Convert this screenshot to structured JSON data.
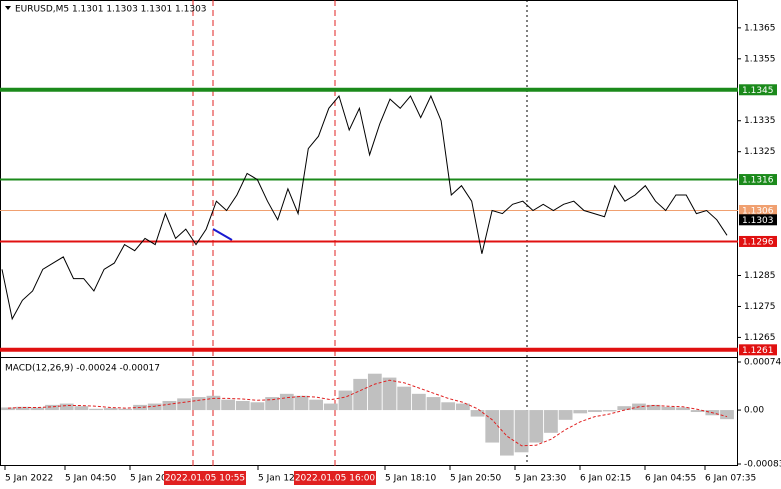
{
  "chart_data": [
    {
      "type": "price",
      "title": "EURUSD,M5 1.1301 1.1303 1.1301 1.1303",
      "ylim": [
        1.1259,
        1.1374
      ],
      "yticks": [
        1.1365,
        1.1355,
        1.1335,
        1.1325,
        1.1285,
        1.1275,
        1.1265
      ],
      "series": [
        {
          "color": "#000000",
          "values": [
            1.1287,
            1.1271,
            1.1277,
            1.128,
            1.1287,
            1.1289,
            1.1291,
            1.1284,
            1.1284,
            1.128,
            1.1287,
            1.1289,
            1.1295,
            1.1293,
            1.1297,
            1.1295,
            1.1305,
            1.1297,
            1.13,
            1.1295,
            1.13,
            1.1309,
            1.1306,
            1.1311,
            1.1318,
            1.1316,
            1.1309,
            1.1303,
            1.1313,
            1.1305,
            1.1326,
            1.133,
            1.1339,
            1.1343,
            1.1332,
            1.1339,
            1.1324,
            1.1334,
            1.1342,
            1.1339,
            1.1343,
            1.1336,
            1.1343,
            1.1335,
            1.1311,
            1.1314,
            1.1309,
            1.1292,
            1.1306,
            1.1305,
            1.1308,
            1.1309,
            1.1306,
            1.1308,
            1.1306,
            1.1308,
            1.1309,
            1.1306,
            1.1305,
            1.1304,
            1.1314,
            1.1309,
            1.1311,
            1.1314,
            1.1309,
            1.1306,
            1.1311,
            1.1311,
            1.1305,
            1.1306,
            1.1303,
            1.1298
          ]
        }
      ],
      "levels": [
        {
          "value": 1.1345,
          "color": "#1b8a1b",
          "width": 4
        },
        {
          "value": 1.1316,
          "color": "#1b8a1b",
          "width": 2
        },
        {
          "value": 1.1306,
          "color": "#f0a070",
          "width": 1
        },
        {
          "value": 1.1303,
          "color": "#000000",
          "width": 0
        },
        {
          "value": 1.1296,
          "color": "#e01010",
          "width": 2
        },
        {
          "value": 1.1261,
          "color": "#e01010",
          "width": 4
        }
      ],
      "xticks": [
        "5 Jan 2022",
        "5 Jan 04:50",
        "5 Jan 202",
        "5 Jan 12",
        "5 Jan 18:10",
        "5 Jan 20:50",
        "5 Jan 23:30",
        "6 Jan 02:15",
        "6 Jan 04:55",
        "6 Jan 07:35"
      ],
      "markers": [
        "2022.01.05 10:55",
        "2022.01.05 16:00"
      ]
    },
    {
      "type": "macd",
      "title": "MACD(12,26,9) -0.00024 -0.00017",
      "ylim": [
        -0.00083,
        0.00074
      ],
      "yticks": [
        0.00074,
        {
          "value": 0,
          "label": "0.00"
        },
        -0.00083
      ],
      "series": [
        {
          "color": "#c0c0c0",
          "values": [
            4e-05,
            5e-05,
            4e-05,
            8e-05,
            0.0001,
            6e-05,
            2e-05,
            3e-05,
            2e-05,
            8e-05,
            0.0001,
            0.00014,
            0.00018,
            0.0002,
            0.00022,
            0.00016,
            0.00014,
            0.00012,
            0.0002,
            0.00025,
            0.00022,
            0.00016,
            0.0001,
            0.0003,
            0.00048,
            0.00056,
            0.0005,
            0.00036,
            0.00025,
            0.0002,
            0.00012,
            0.0001,
            -0.0001,
            -0.0005,
            -0.0007,
            -0.00065,
            -0.0005,
            -0.00035,
            -0.00015,
            -5e-05,
            -3e-05,
            -2e-05,
            6e-05,
            0.0001,
            8e-05,
            5e-05,
            4e-05,
            -3e-05,
            -8e-05,
            -0.00014
          ]
        },
        {
          "color": "#e02020",
          "values": [
            3e-05,
            4e-05,
            4e-05,
            5e-05,
            7e-05,
            7e-05,
            6e-05,
            4e-05,
            3e-05,
            4e-05,
            6e-05,
            9e-05,
            0.00012,
            0.00015,
            0.00018,
            0.00018,
            0.00017,
            0.00015,
            0.00016,
            0.00019,
            0.00021,
            0.0002,
            0.00016,
            0.0002,
            0.0003,
            0.0004,
            0.00046,
            0.00042,
            0.00034,
            0.00026,
            0.00018,
            0.00012,
            2e-05,
            -0.00015,
            -0.0004,
            -0.00055,
            -0.00054,
            -0.00045,
            -0.0003,
            -0.00018,
            -0.0001,
            -6e-05,
            0,
            5e-05,
            7e-05,
            6e-05,
            5e-05,
            1e-05,
            -4e-05,
            -0.0001
          ]
        }
      ]
    }
  ]
}
